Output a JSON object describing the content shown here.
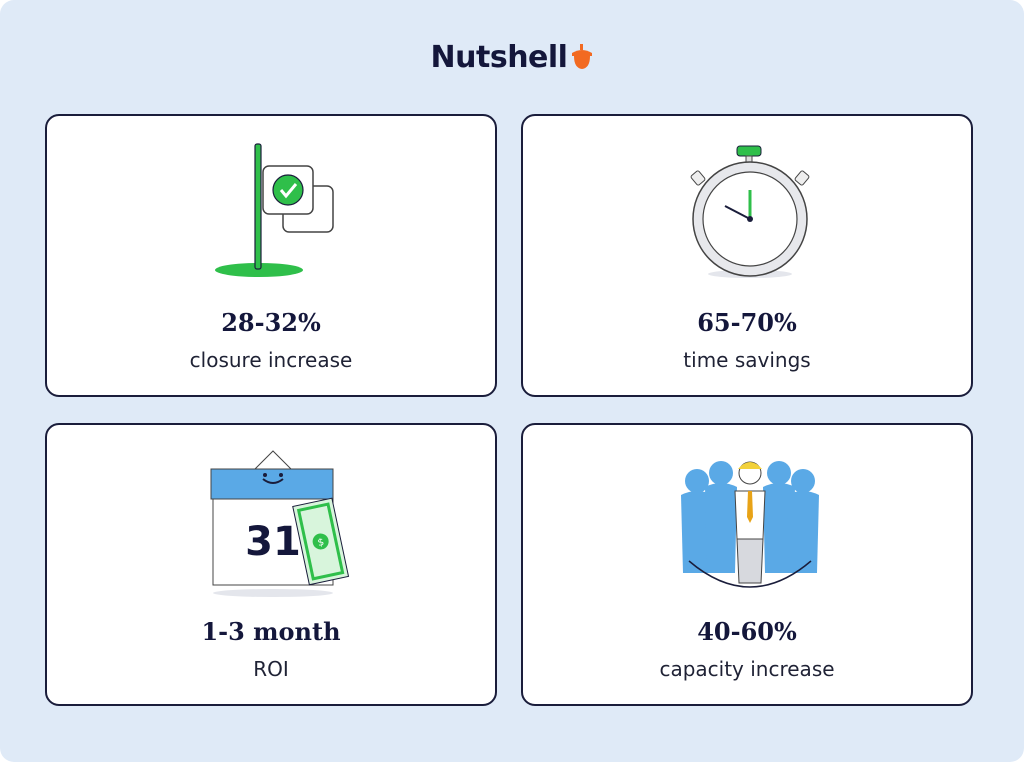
{
  "brand": "Nutshell",
  "cards": [
    {
      "stat": "28-32%",
      "label": "closure increase"
    },
    {
      "stat": "65-70%",
      "label": "time savings"
    },
    {
      "stat": "1-3 month",
      "label": "ROI",
      "icon_text": "31",
      "icon_symbol": "$"
    },
    {
      "stat": "40-60%",
      "label": "capacity increase"
    }
  ]
}
